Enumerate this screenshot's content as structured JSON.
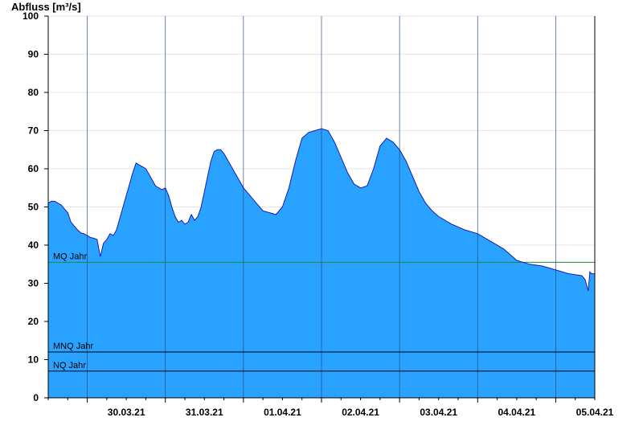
{
  "chart_data": {
    "type": "area",
    "ylabel": "Abfluss [m³/s]",
    "ylim": [
      0,
      100
    ],
    "yticks": [
      0,
      10,
      20,
      30,
      40,
      50,
      60,
      70,
      80,
      90,
      100
    ],
    "grid": true,
    "x_unit": "hours since 29.03.21 12:00",
    "xlim": [
      0,
      168
    ],
    "day_labels": [
      "30.03.21",
      "31.03.21",
      "01.04.21",
      "02.04.21",
      "03.04.21",
      "04.04.21",
      "05.04.21"
    ],
    "colors": {
      "fill": "#29a3ff",
      "line": "#1a1ab4",
      "mq": "#1c8a3a",
      "ref": "#000000"
    },
    "series": [
      {
        "name": "Abfluss",
        "x": [
          0,
          1,
          2,
          3,
          4,
          5,
          6,
          7,
          8,
          9,
          10,
          11,
          12,
          13,
          14,
          15,
          16,
          17,
          17.5,
          18,
          19,
          20,
          21,
          22,
          23,
          24,
          25,
          26,
          27,
          28,
          29,
          30,
          31,
          32,
          33,
          34,
          35,
          36,
          37,
          38,
          39,
          40,
          41,
          42,
          43,
          44,
          45,
          46,
          47,
          48,
          49,
          50,
          51,
          52,
          53,
          54,
          56,
          58,
          60,
          62,
          64,
          66,
          68,
          70,
          72,
          74,
          76,
          78,
          80,
          82,
          84,
          86,
          88,
          90,
          92,
          94,
          96,
          98,
          100,
          102,
          104,
          106,
          108,
          110,
          112,
          114,
          116,
          118,
          120,
          124,
          128,
          132,
          136,
          140,
          144,
          148,
          152,
          156,
          160,
          164,
          165,
          166,
          166.5,
          167,
          168
        ],
        "y": [
          51,
          51.5,
          51.5,
          51,
          50.5,
          49.5,
          48.5,
          46,
          45,
          44,
          43.2,
          43,
          42.5,
          42,
          41.8,
          41.5,
          37,
          40.5,
          41,
          41.5,
          43,
          42.5,
          44,
          47,
          50,
          53,
          56,
          59,
          61.5,
          61,
          60.5,
          60,
          58.5,
          57,
          55.5,
          55,
          54.5,
          55,
          53,
          50,
          47.5,
          46,
          46.5,
          45.5,
          46,
          48,
          46.5,
          47.5,
          50,
          54,
          58,
          62,
          64.5,
          65,
          65,
          64,
          61,
          58,
          55,
          53,
          51,
          49,
          48.5,
          48,
          50,
          55,
          62,
          68,
          69.5,
          70,
          70.5,
          70,
          67,
          63,
          59,
          56,
          55,
          55.5,
          60,
          66,
          68,
          67,
          65,
          62,
          58,
          54,
          51,
          49,
          47.5,
          45.5,
          44,
          43,
          41,
          39,
          36,
          35,
          34.5,
          33.5,
          32.5,
          32,
          31,
          28,
          33,
          32.5,
          32.5
        ]
      }
    ],
    "reference_lines": [
      {
        "label": "MQ Jahr",
        "value": 35.5
      },
      {
        "label": "MNQ Jahr",
        "value": 12
      },
      {
        "label": "NQ Jahr",
        "value": 7
      }
    ]
  }
}
